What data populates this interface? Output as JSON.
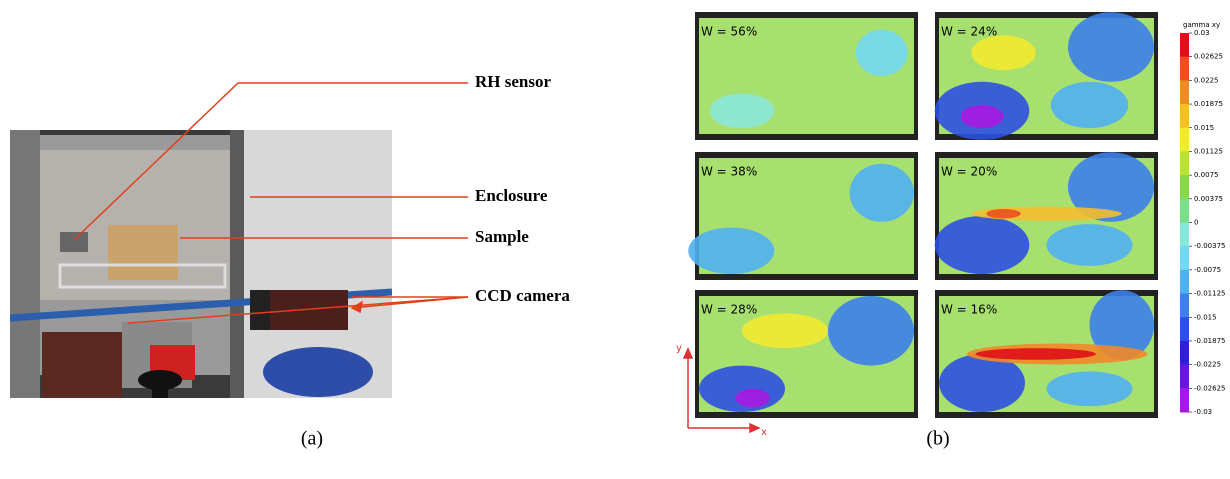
{
  "figure": {
    "photo_labels": [
      "RH sensor",
      "Enclosure",
      "Sample",
      "CCD camera"
    ],
    "captions": [
      "(a)",
      "(b)"
    ],
    "panels": [
      "W = 56%",
      "W = 24%",
      "W = 38%",
      "W = 20%",
      "W = 28%",
      "W = 16%"
    ],
    "colorbar": {
      "title": "gamma xy",
      "ticks": [
        "0.03",
        "0.02625",
        "0.0225",
        "0.01875",
        "0.015",
        "0.01125",
        "0.0075",
        "0.00375",
        "0",
        "-0.00375",
        "-0.0075",
        "-0.01125",
        "-0.015",
        "-0.01875",
        "-0.0225",
        "-0.02625",
        "-0.03"
      ]
    },
    "axes": {
      "y": "y",
      "x": "x"
    }
  }
}
